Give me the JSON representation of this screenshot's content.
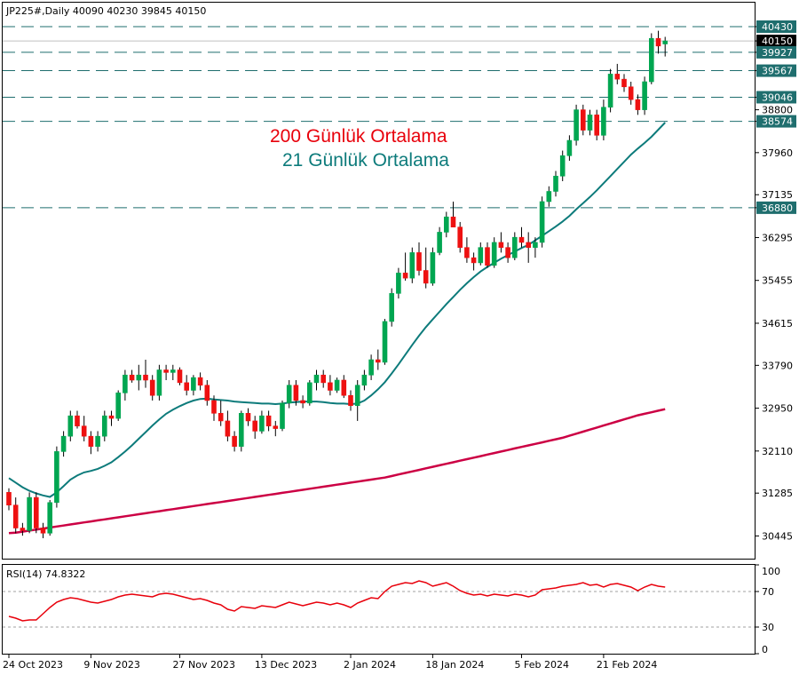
{
  "header": {
    "symbol_line": "JP225#,Daily  40090 40230 39845 40150"
  },
  "legend": {
    "ma200_label": "200 Günlük Ortalama",
    "ma21_label": "21 Günlük Ortalama",
    "ma200_color": "#cc0044",
    "ma21_color": "#0d7b7b"
  },
  "colors": {
    "bull": "#00a651",
    "bear": "#ee1111",
    "level_line": "#1f6e6e",
    "level_badge": "#1f6e6e",
    "price_badge": "#000000"
  },
  "rsi": {
    "label": "RSI(14) 74.8322",
    "levels": [
      70,
      30
    ],
    "axis_ticks": [
      "100",
      "70",
      "30",
      "0"
    ]
  },
  "chart_data": {
    "type": "candlestick",
    "y_ticks": [
      40430,
      40150,
      39927,
      39567,
      39046,
      38800,
      38574,
      37960,
      37135,
      36880,
      36295,
      35455,
      34615,
      33790,
      32950,
      32110,
      31285,
      30445
    ],
    "ylim": [
      30000,
      40900
    ],
    "current_price": 40150,
    "levels": [
      40430,
      39927,
      39567,
      39046,
      38574,
      36880
    ],
    "x_labels": [
      "24 Oct 2023",
      "9 Nov 2023",
      "27 Nov 2023",
      "13 Dec 2023",
      "2 Jan 2024",
      "18 Jan 2024",
      "5 Feb 2024",
      "21 Feb 2024"
    ],
    "x_label_index": [
      0,
      12,
      25,
      37,
      50,
      62,
      75,
      87
    ],
    "candles": [
      [
        31300,
        31380,
        30950,
        31050
      ],
      [
        31050,
        31200,
        30500,
        30600
      ],
      [
        30600,
        30700,
        30450,
        30550
      ],
      [
        30550,
        31300,
        30500,
        31200
      ],
      [
        31200,
        31300,
        30500,
        30600
      ],
      [
        30600,
        30700,
        30400,
        30500
      ],
      [
        30500,
        31150,
        30450,
        31100
      ],
      [
        31100,
        32200,
        31000,
        32100
      ],
      [
        32100,
        32500,
        32000,
        32400
      ],
      [
        32400,
        32900,
        32300,
        32800
      ],
      [
        32800,
        32900,
        32550,
        32600
      ],
      [
        32600,
        32800,
        32300,
        32400
      ],
      [
        32400,
        32500,
        32050,
        32200
      ],
      [
        32200,
        32500,
        32100,
        32400
      ],
      [
        32400,
        32900,
        32300,
        32800
      ],
      [
        32800,
        32900,
        32600,
        32750
      ],
      [
        32750,
        33300,
        32700,
        33250
      ],
      [
        33250,
        33700,
        33100,
        33600
      ],
      [
        33600,
        33700,
        33450,
        33500
      ],
      [
        33500,
        33800,
        33300,
        33600
      ],
      [
        33600,
        33900,
        33350,
        33500
      ],
      [
        33500,
        33600,
        33100,
        33200
      ],
      [
        33200,
        33800,
        33100,
        33700
      ],
      [
        33700,
        33800,
        33500,
        33650
      ],
      [
        33650,
        33800,
        33500,
        33700
      ],
      [
        33700,
        33750,
        33400,
        33450
      ],
      [
        33450,
        33600,
        33200,
        33300
      ],
      [
        33300,
        33600,
        33200,
        33550
      ],
      [
        33550,
        33650,
        33300,
        33400
      ],
      [
        33400,
        33500,
        33000,
        33100
      ],
      [
        33100,
        33200,
        32700,
        32850
      ],
      [
        32850,
        33100,
        32600,
        32700
      ],
      [
        32700,
        32900,
        32300,
        32400
      ],
      [
        32400,
        32500,
        32100,
        32200
      ],
      [
        32200,
        32900,
        32100,
        32850
      ],
      [
        32850,
        32950,
        32600,
        32700
      ],
      [
        32700,
        32800,
        32350,
        32500
      ],
      [
        32500,
        32900,
        32450,
        32800
      ],
      [
        32800,
        32900,
        32500,
        32600
      ],
      [
        32600,
        32700,
        32400,
        32550
      ],
      [
        32550,
        33100,
        32500,
        33050
      ],
      [
        33050,
        33500,
        32950,
        33400
      ],
      [
        33400,
        33500,
        33000,
        33100
      ],
      [
        33100,
        33200,
        32950,
        33050
      ],
      [
        33050,
        33500,
        33000,
        33450
      ],
      [
        33450,
        33700,
        33300,
        33600
      ],
      [
        33600,
        33700,
        33350,
        33450
      ],
      [
        33450,
        33600,
        33200,
        33300
      ],
      [
        33300,
        33550,
        33250,
        33500
      ],
      [
        33500,
        33600,
        33150,
        33200
      ],
      [
        33200,
        33300,
        32900,
        33000
      ],
      [
        33000,
        33500,
        32700,
        33400
      ],
      [
        33400,
        33700,
        33300,
        33600
      ],
      [
        33600,
        34000,
        33500,
        33900
      ],
      [
        33900,
        34100,
        33700,
        33850
      ],
      [
        33850,
        34700,
        33800,
        34650
      ],
      [
        34650,
        35300,
        34550,
        35200
      ],
      [
        35200,
        35700,
        35100,
        35600
      ],
      [
        35600,
        36000,
        35450,
        35500
      ],
      [
        35500,
        36100,
        35400,
        36000
      ],
      [
        36000,
        36200,
        35550,
        35650
      ],
      [
        35650,
        36100,
        35300,
        35400
      ],
      [
        35400,
        36100,
        35350,
        36000
      ],
      [
        36000,
        36500,
        35950,
        36400
      ],
      [
        36400,
        36800,
        36300,
        36700
      ],
      [
        36700,
        37000,
        36500,
        36500
      ],
      [
        36500,
        36600,
        36000,
        36100
      ],
      [
        36100,
        36300,
        35800,
        35900
      ],
      [
        35900,
        36000,
        35650,
        35800
      ],
      [
        35800,
        36200,
        35750,
        36100
      ],
      [
        36100,
        36200,
        35700,
        35750
      ],
      [
        35750,
        36300,
        35700,
        36200
      ],
      [
        36200,
        36400,
        36000,
        36100
      ],
      [
        36100,
        36200,
        35800,
        35900
      ],
      [
        35900,
        36400,
        35850,
        36300
      ],
      [
        36300,
        36500,
        36100,
        36200
      ],
      [
        36200,
        36400,
        35800,
        36100
      ],
      [
        36100,
        36300,
        35900,
        36200
      ],
      [
        36200,
        37100,
        36100,
        37000
      ],
      [
        37000,
        37300,
        36900,
        37200
      ],
      [
        37200,
        37600,
        37100,
        37500
      ],
      [
        37500,
        38000,
        37400,
        37900
      ],
      [
        37900,
        38300,
        37800,
        38200
      ],
      [
        38200,
        38900,
        38100,
        38800
      ],
      [
        38800,
        38900,
        38300,
        38400
      ],
      [
        38400,
        38800,
        38300,
        38700
      ],
      [
        38700,
        38800,
        38200,
        38300
      ],
      [
        38300,
        39000,
        38200,
        38850
      ],
      [
        38850,
        39600,
        38750,
        39500
      ],
      [
        39500,
        39700,
        39300,
        39400
      ],
      [
        39400,
        39500,
        39150,
        39250
      ],
      [
        39250,
        39350,
        38900,
        39000
      ],
      [
        39000,
        39100,
        38700,
        38800
      ],
      [
        38800,
        39450,
        38700,
        39350
      ],
      [
        39350,
        40300,
        39300,
        40200
      ],
      [
        40200,
        40350,
        39900,
        40050
      ],
      [
        40090,
        40230,
        39845,
        40150
      ]
    ],
    "ma21": [
      31580,
      31490,
      31400,
      31330,
      31280,
      31240,
      31210,
      31300,
      31420,
      31550,
      31630,
      31690,
      31720,
      31760,
      31820,
      31890,
      31990,
      32100,
      32220,
      32350,
      32480,
      32610,
      32730,
      32840,
      32920,
      32990,
      33050,
      33100,
      33130,
      33140,
      33120,
      33110,
      33100,
      33080,
      33070,
      33060,
      33050,
      33040,
      33040,
      33030,
      33040,
      33060,
      33070,
      33080,
      33080,
      33080,
      33070,
      33050,
      33040,
      33040,
      33030,
      33040,
      33100,
      33200,
      33320,
      33460,
      33630,
      33810,
      34000,
      34190,
      34370,
      34540,
      34690,
      34840,
      34990,
      35130,
      35270,
      35400,
      35520,
      35630,
      35720,
      35800,
      35880,
      35950,
      36020,
      36090,
      36150,
      36240,
      36330,
      36420,
      36510,
      36610,
      36720,
      36850,
      36970,
      37090,
      37220,
      37360,
      37500,
      37640,
      37780,
      37920,
      38040,
      38150,
      38270,
      38410,
      38550
    ],
    "ma200": [
      30500,
      30510,
      30530,
      30550,
      30570,
      30590,
      30610,
      30630,
      30650,
      30670,
      30690,
      30710,
      30730,
      30750,
      30770,
      30790,
      30810,
      30830,
      30850,
      30870,
      30890,
      30910,
      30930,
      30950,
      30970,
      30990,
      31010,
      31030,
      31050,
      31070,
      31090,
      31110,
      31130,
      31150,
      31170,
      31190,
      31210,
      31230,
      31250,
      31270,
      31290,
      31310,
      31330,
      31350,
      31370,
      31390,
      31410,
      31430,
      31450,
      31470,
      31490,
      31510,
      31530,
      31550,
      31570,
      31590,
      31620,
      31650,
      31680,
      31710,
      31740,
      31770,
      31800,
      31830,
      31860,
      31890,
      31920,
      31950,
      31980,
      32010,
      32040,
      32070,
      32100,
      32130,
      32160,
      32190,
      32220,
      32250,
      32280,
      32310,
      32340,
      32370,
      32410,
      32450,
      32490,
      32530,
      32570,
      32610,
      32650,
      32690,
      32730,
      32770,
      32810,
      32840,
      32870,
      32900,
      32930
    ],
    "rsi_values": [
      42,
      40,
      37,
      38,
      38,
      45,
      52,
      58,
      61,
      63,
      62,
      60,
      58,
      57,
      59,
      61,
      64,
      66,
      67,
      66,
      65,
      64,
      67,
      68,
      67,
      65,
      63,
      61,
      62,
      60,
      57,
      55,
      50,
      48,
      53,
      52,
      51,
      54,
      53,
      52,
      55,
      58,
      56,
      54,
      56,
      58,
      57,
      55,
      57,
      55,
      52,
      57,
      60,
      63,
      62,
      70,
      76,
      78,
      80,
      79,
      82,
      80,
      76,
      78,
      80,
      76,
      71,
      68,
      66,
      67,
      65,
      67,
      66,
      65,
      67,
      66,
      64,
      66,
      72,
      73,
      74,
      76,
      77,
      78,
      80,
      77,
      78,
      75,
      78,
      79,
      77,
      75,
      71,
      75,
      78,
      76,
      75
    ]
  }
}
